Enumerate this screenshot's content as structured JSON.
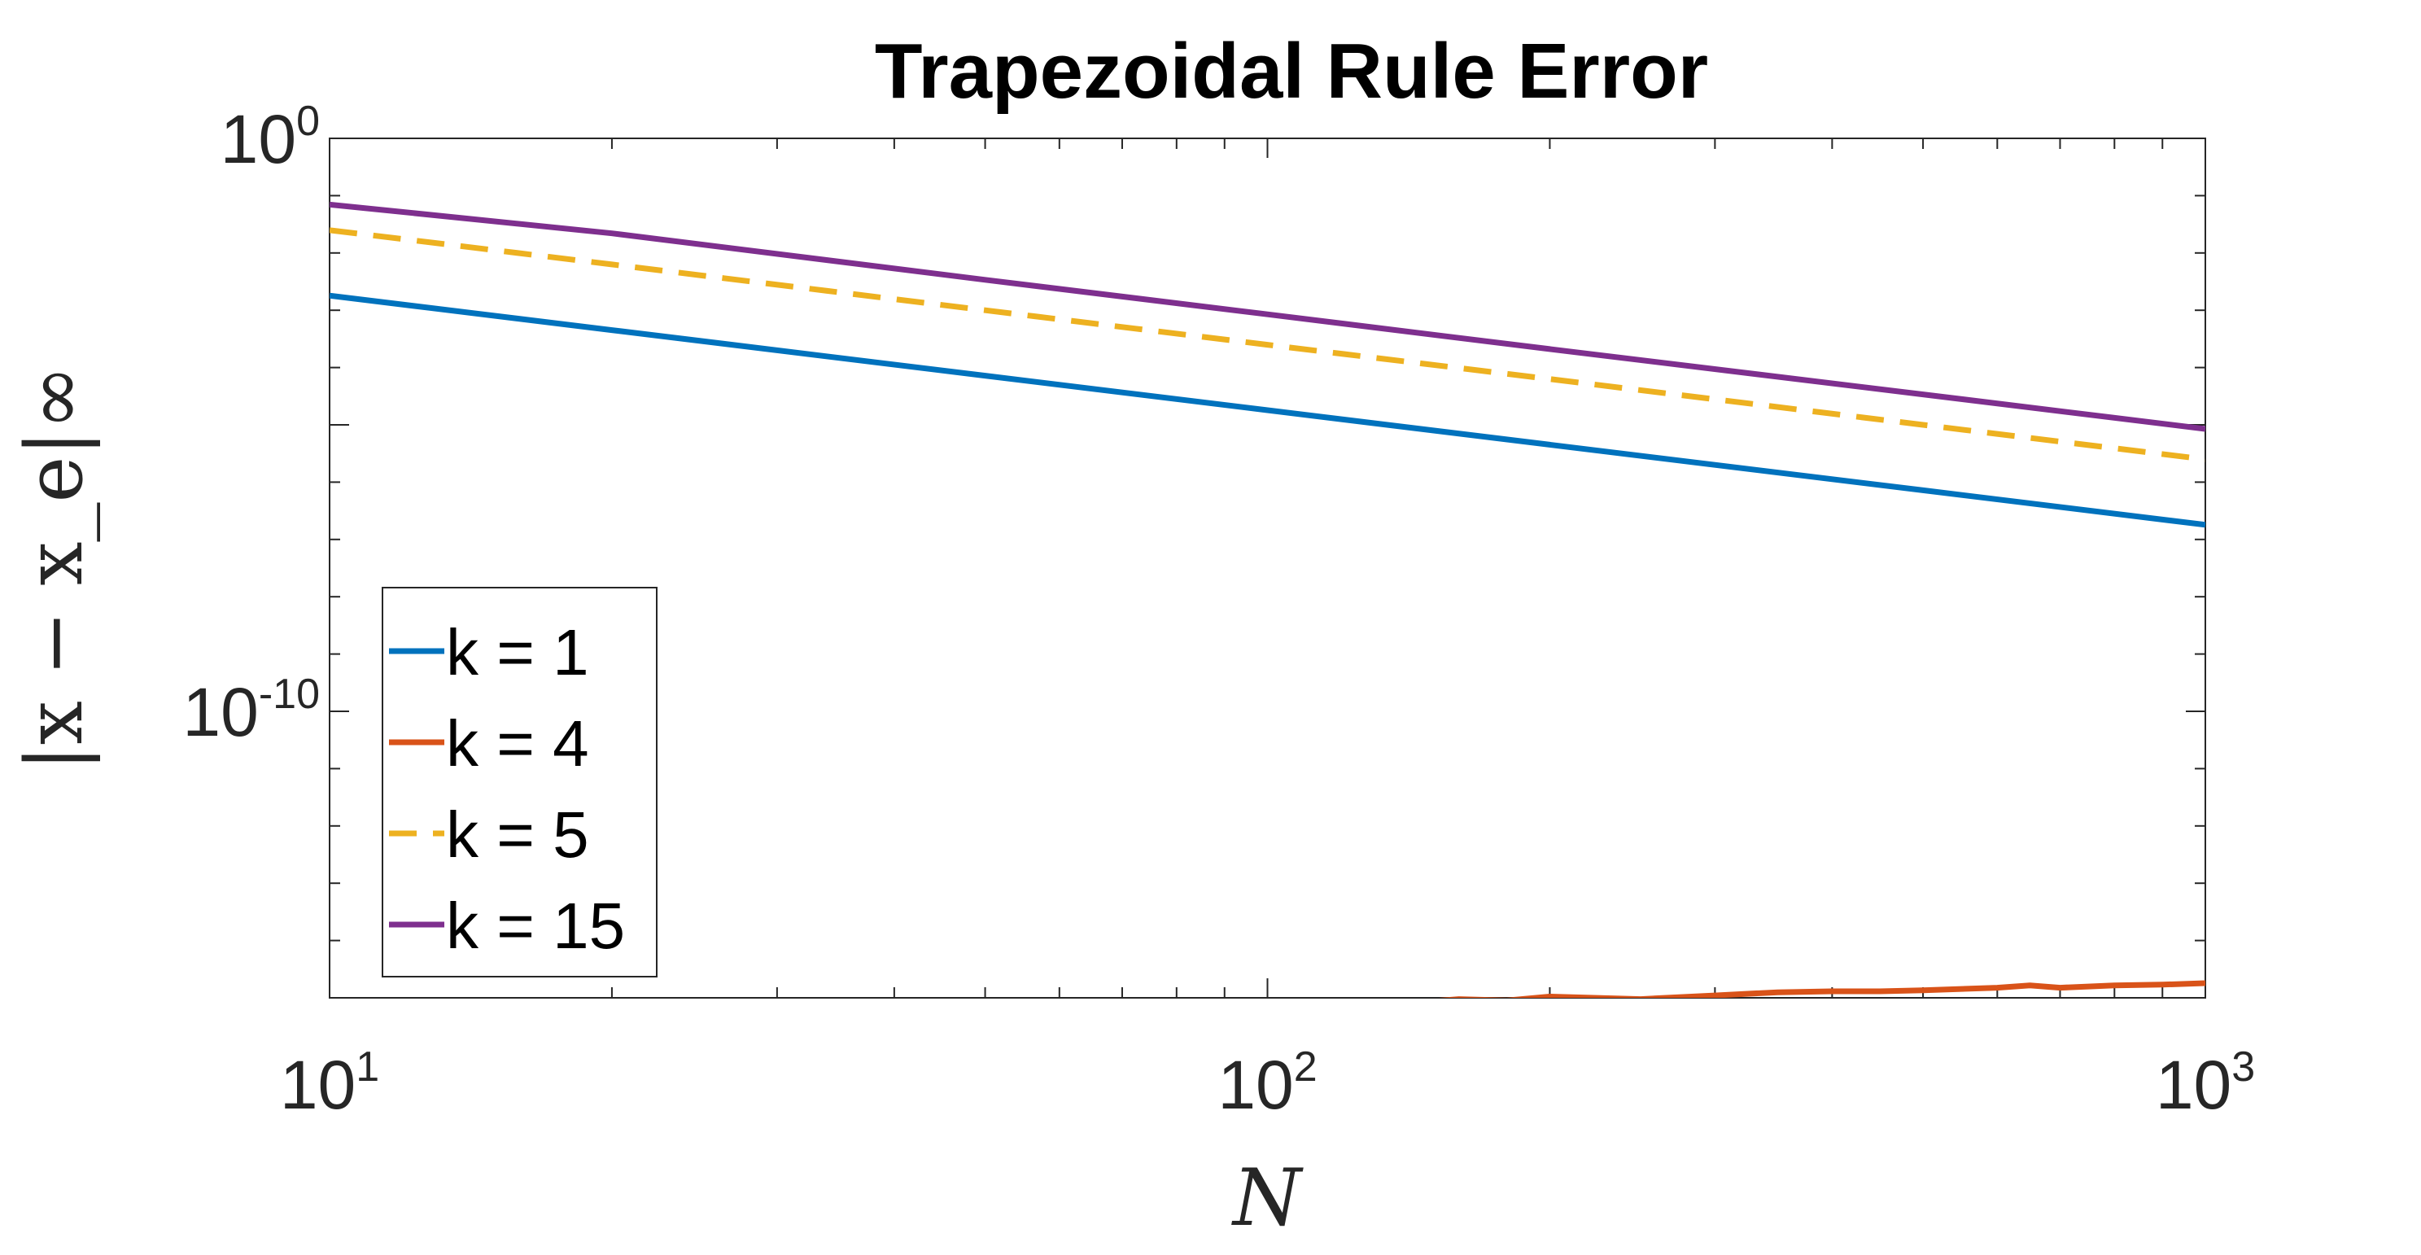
{
  "chart_data": {
    "type": "line",
    "title": "Trapezoidal Rule Error",
    "xlabel": "N",
    "ylabel": "|x − x_e|∞",
    "x_scale": "log",
    "y_scale": "log",
    "xlim": [
      10,
      1000
    ],
    "ylim": [
      1e-15,
      1
    ],
    "x_ticks": [
      {
        "value": 10,
        "base": "10",
        "exp": "1"
      },
      {
        "value": 100,
        "base": "10",
        "exp": "2"
      },
      {
        "value": 1000,
        "base": "10",
        "exp": "3"
      }
    ],
    "y_ticks": [
      {
        "value": 1,
        "base": "10",
        "exp": "0"
      },
      {
        "value": 1e-10,
        "base": "10",
        "exp": "-10"
      }
    ],
    "grid": false,
    "legend_position": "bottom-left",
    "series": [
      {
        "name": "k = 1",
        "color": "#0072BD",
        "style": "solid",
        "x": [
          10,
          20,
          50,
          100,
          200,
          500,
          1000
        ],
        "y": [
          0.0018,
          0.00045,
          7.2e-05,
          1.8e-05,
          4.5e-06,
          7.2e-07,
          1.8e-07
        ]
      },
      {
        "name": "k = 4",
        "color": "#D95319",
        "style": "solid",
        "x": [
          10,
          20,
          30,
          40,
          50,
          60,
          70,
          80,
          90,
          100,
          120,
          140,
          160,
          180,
          200,
          250,
          300,
          350,
          400,
          450,
          500,
          600,
          650,
          700,
          800,
          900,
          1000
        ],
        "y": [
          3e-16,
          4.5e-16,
          3.5e-16,
          5e-16,
          5e-16,
          5.5e-16,
          6e-16,
          5.2e-16,
          7.5e-16,
          7e-16,
          7e-16,
          8e-16,
          9.5e-16,
          9e-16,
          1.05e-15,
          9.5e-16,
          1.1e-15,
          1.25e-15,
          1.3e-15,
          1.3e-15,
          1.35e-15,
          1.5e-15,
          1.65e-15,
          1.5e-15,
          1.65e-15,
          1.7e-15,
          1.8e-15
        ]
      },
      {
        "name": "k = 5",
        "color": "#EDB120",
        "style": "dashed",
        "x": [
          10,
          20,
          50,
          100,
          200,
          500,
          1000
        ],
        "y": [
          0.025,
          0.0063,
          0.001,
          0.00025,
          6.3e-05,
          1e-05,
          2.5e-06
        ]
      },
      {
        "name": "k = 15",
        "color": "#7E2F8E",
        "style": "solid",
        "x": [
          10,
          20,
          50,
          100,
          200,
          500,
          1000
        ],
        "y": [
          0.07,
          0.022,
          0.0034,
          0.00085,
          0.00021,
          3.4e-05,
          8.5e-06
        ]
      }
    ]
  }
}
